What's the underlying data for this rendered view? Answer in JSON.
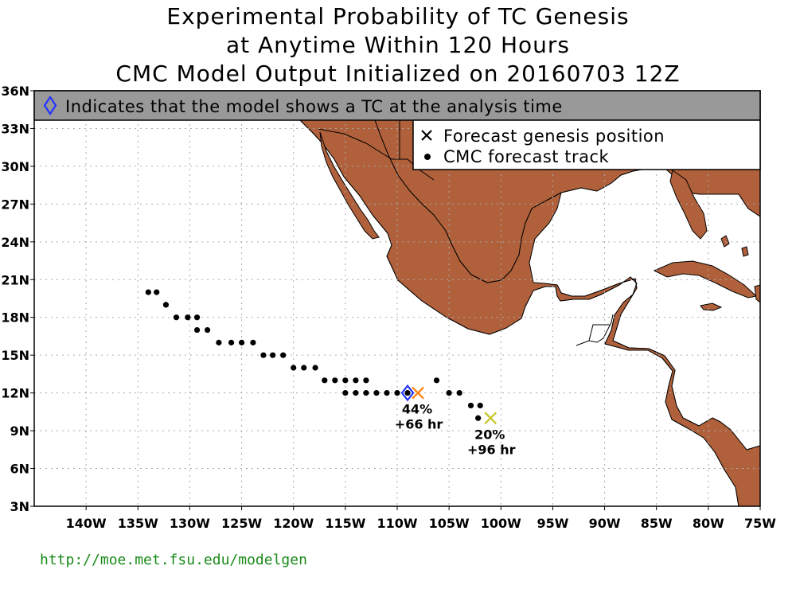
{
  "title": {
    "line1": "Experimental Probability of TC Genesis",
    "line2": "at Anytime Within 120 Hours",
    "line3": "CMC Model Output Initialized on 20160703 12Z"
  },
  "banner": {
    "text": "Indicates that the model shows a TC at the analysis time"
  },
  "legend": {
    "genesis_label": "Forecast genesis position",
    "track_label": "CMC forecast track"
  },
  "colors": {
    "land": "#b0613c",
    "banner_bg": "#999999",
    "analysis_marker": "#2233ff",
    "genesis_1": "#ff8a1a",
    "genesis_2": "#c8c832",
    "url": "#1a8a1a",
    "grid": "#aaaaaa"
  },
  "footer": {
    "url": "http://moe.met.fsu.edu/modelgen"
  },
  "map": {
    "lon_range": [
      -145,
      -75
    ],
    "lat_range": [
      3,
      36
    ],
    "lon_ticks": [
      {
        "value": -140,
        "label": "140W"
      },
      {
        "value": -135,
        "label": "135W"
      },
      {
        "value": -130,
        "label": "130W"
      },
      {
        "value": -125,
        "label": "125W"
      },
      {
        "value": -120,
        "label": "120W"
      },
      {
        "value": -115,
        "label": "115W"
      },
      {
        "value": -110,
        "label": "110W"
      },
      {
        "value": -105,
        "label": "105W"
      },
      {
        "value": -100,
        "label": "100W"
      },
      {
        "value": -95,
        "label": "95W"
      },
      {
        "value": -90,
        "label": "90W"
      },
      {
        "value": -85,
        "label": "85W"
      },
      {
        "value": -80,
        "label": "80W"
      },
      {
        "value": -75,
        "label": "75W"
      }
    ],
    "lat_ticks": [
      {
        "value": 3,
        "label": "3N"
      },
      {
        "value": 6,
        "label": "6N"
      },
      {
        "value": 9,
        "label": "9N"
      },
      {
        "value": 12,
        "label": "12N"
      },
      {
        "value": 15,
        "label": "15N"
      },
      {
        "value": 18,
        "label": "18N"
      },
      {
        "value": 21,
        "label": "21N"
      },
      {
        "value": 24,
        "label": "24N"
      },
      {
        "value": 27,
        "label": "27N"
      },
      {
        "value": 30,
        "label": "30N"
      },
      {
        "value": 33,
        "label": "33N"
      },
      {
        "value": 36,
        "label": "36N"
      }
    ],
    "tracks": [
      {
        "lon": -134,
        "lat": 20
      },
      {
        "lon": -133.2,
        "lat": 20
      },
      {
        "lon": -132.3,
        "lat": 19
      },
      {
        "lon": -131.3,
        "lat": 18
      },
      {
        "lon": -130.2,
        "lat": 18
      },
      {
        "lon": -129.3,
        "lat": 18
      },
      {
        "lon": -129.3,
        "lat": 17
      },
      {
        "lon": -128.3,
        "lat": 17
      },
      {
        "lon": -127.2,
        "lat": 16
      },
      {
        "lon": -126,
        "lat": 16
      },
      {
        "lon": -125,
        "lat": 16
      },
      {
        "lon": -123.9,
        "lat": 16
      },
      {
        "lon": -122.9,
        "lat": 15
      },
      {
        "lon": -122,
        "lat": 15
      },
      {
        "lon": -121,
        "lat": 15
      },
      {
        "lon": -120,
        "lat": 14
      },
      {
        "lon": -119,
        "lat": 14
      },
      {
        "lon": -117.9,
        "lat": 14
      },
      {
        "lon": -117,
        "lat": 13
      },
      {
        "lon": -116,
        "lat": 13
      },
      {
        "lon": -115,
        "lat": 13
      },
      {
        "lon": -114,
        "lat": 13
      },
      {
        "lon": -113,
        "lat": 13
      },
      {
        "lon": -115,
        "lat": 12
      },
      {
        "lon": -114,
        "lat": 12
      },
      {
        "lon": -113,
        "lat": 12
      },
      {
        "lon": -112,
        "lat": 12
      },
      {
        "lon": -111,
        "lat": 12
      },
      {
        "lon": -110,
        "lat": 12
      },
      {
        "lon": -109,
        "lat": 12
      },
      {
        "lon": -106.2,
        "lat": 13
      },
      {
        "lon": -105,
        "lat": 12
      },
      {
        "lon": -104,
        "lat": 12
      },
      {
        "lon": -102.9,
        "lat": 11
      },
      {
        "lon": -102,
        "lat": 11
      },
      {
        "lon": -102.2,
        "lat": 10
      }
    ],
    "analysis_markers": [
      {
        "lon": -109,
        "lat": 12
      }
    ],
    "genesis": [
      {
        "lon": -108,
        "lat": 12,
        "pct": "44%",
        "hr": "+66 hr",
        "color_key": "genesis_1"
      },
      {
        "lon": -101,
        "lat": 10,
        "pct": "20%",
        "hr": "+96 hr",
        "color_key": "genesis_2"
      }
    ]
  }
}
